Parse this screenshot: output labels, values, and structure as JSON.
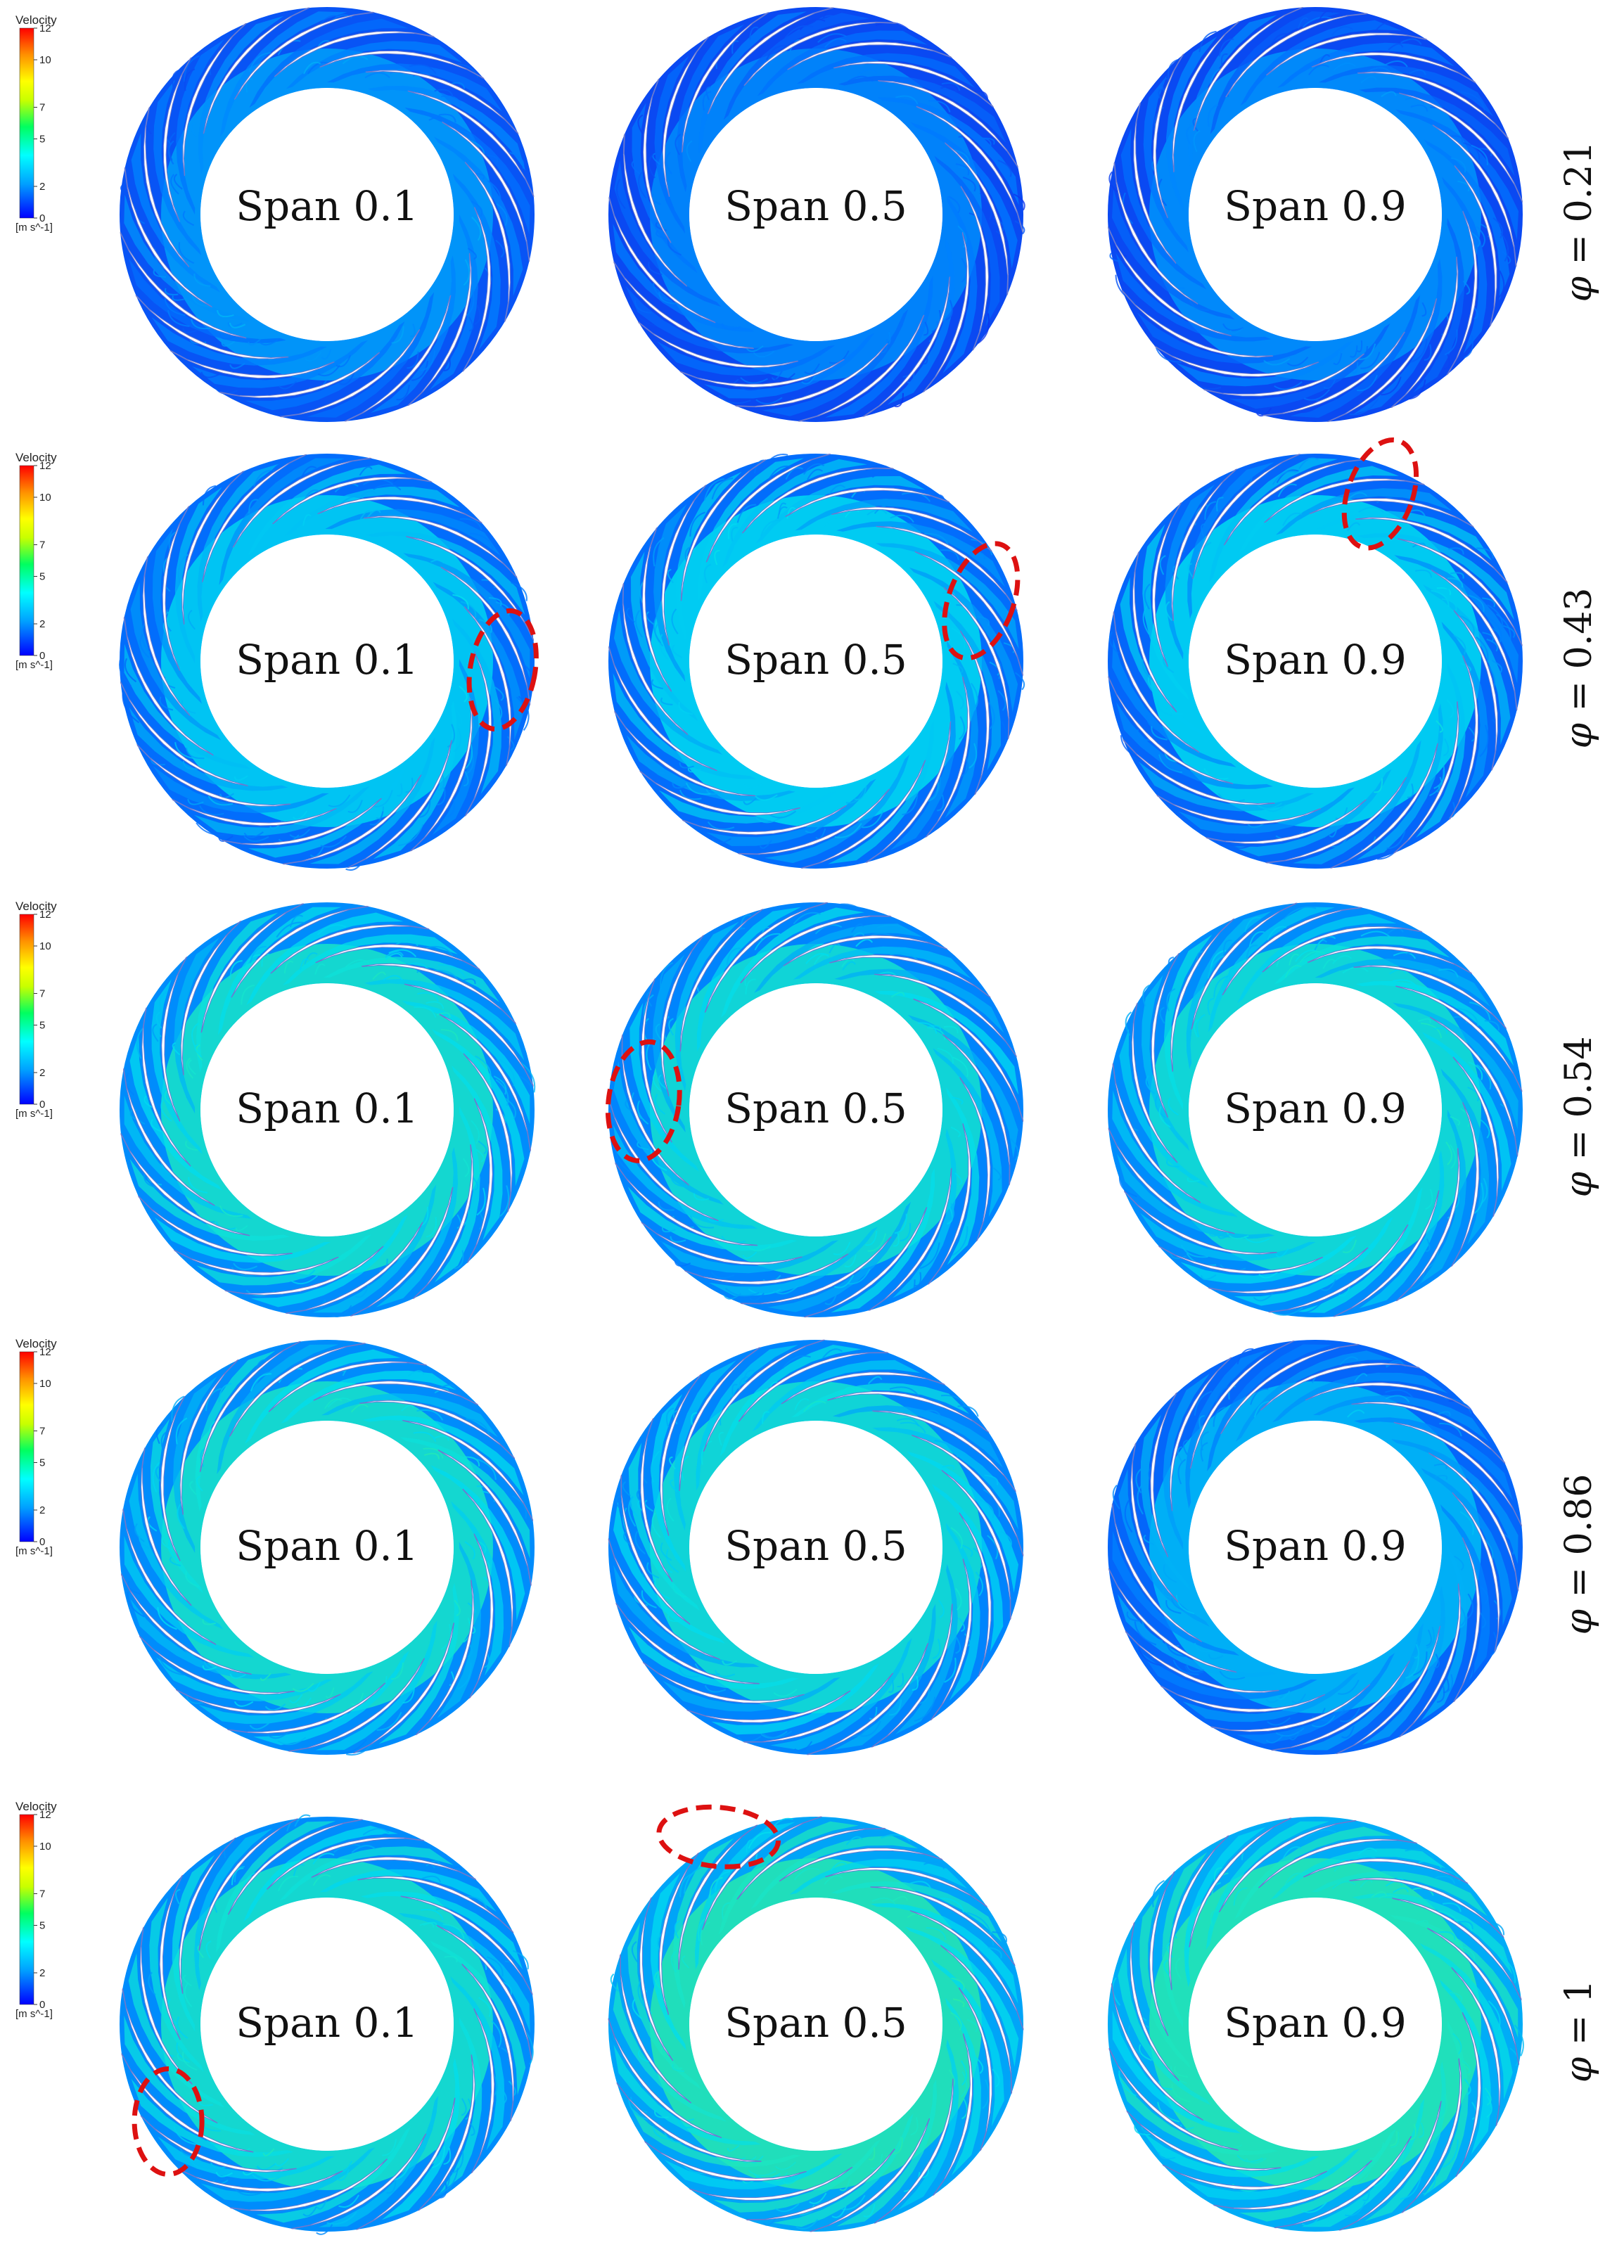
{
  "colorbar": {
    "title": "Velocity",
    "unit": "[m s^-1]",
    "ticks": [
      "12",
      "10",
      "7",
      "5",
      "2",
      "0"
    ],
    "tick_values": [
      12,
      10,
      7,
      5,
      2,
      0
    ],
    "range": [
      0,
      12
    ],
    "colors": [
      "#0000ff",
      "#00a0ff",
      "#00ffff",
      "#00ff60",
      "#c8ff00",
      "#ffff00",
      "#ff9000",
      "#ff0000"
    ]
  },
  "rows": [
    {
      "phi_label": "0.21",
      "phi_value": 0.21,
      "cells": [
        {
          "span": "Span 0.1",
          "ring_flow": 0.35,
          "outer_flow": 0.15,
          "highlight": null
        },
        {
          "span": "Span 0.5",
          "ring_flow": 0.3,
          "outer_flow": 0.12,
          "highlight": null
        },
        {
          "span": "Span 0.9",
          "ring_flow": 0.32,
          "outer_flow": 0.12,
          "highlight": null
        }
      ]
    },
    {
      "phi_label": "0.43",
      "phi_value": 0.43,
      "cells": [
        {
          "span": "Span 0.1",
          "ring_flow": 0.48,
          "outer_flow": 0.22,
          "highlight": "right"
        },
        {
          "span": "Span 0.5",
          "ring_flow": 0.5,
          "outer_flow": 0.22,
          "highlight": "upper-right"
        },
        {
          "span": "Span 0.9",
          "ring_flow": 0.5,
          "outer_flow": 0.2,
          "highlight": "top-right"
        }
      ]
    },
    {
      "phi_label": "0.54",
      "phi_value": 0.54,
      "cells": [
        {
          "span": "Span 0.1",
          "ring_flow": 0.6,
          "outer_flow": 0.3,
          "highlight": null
        },
        {
          "span": "Span 0.5",
          "ring_flow": 0.58,
          "outer_flow": 0.28,
          "highlight": "left"
        },
        {
          "span": "Span 0.9",
          "ring_flow": 0.58,
          "outer_flow": 0.3,
          "highlight": null
        }
      ]
    },
    {
      "phi_label": "0.86",
      "phi_value": 0.86,
      "cells": [
        {
          "span": "Span 0.1",
          "ring_flow": 0.6,
          "outer_flow": 0.3,
          "highlight": null
        },
        {
          "span": "Span 0.5",
          "ring_flow": 0.58,
          "outer_flow": 0.28,
          "highlight": null
        },
        {
          "span": "Span 0.9",
          "ring_flow": 0.42,
          "outer_flow": 0.2,
          "highlight": null
        }
      ]
    },
    {
      "phi_label": "1",
      "phi_value": 1,
      "cells": [
        {
          "span": "Span 0.1",
          "ring_flow": 0.6,
          "outer_flow": 0.3,
          "highlight": "lower-left"
        },
        {
          "span": "Span 0.5",
          "ring_flow": 0.66,
          "outer_flow": 0.36,
          "highlight": "top-left"
        },
        {
          "span": "Span 0.9",
          "ring_flow": 0.66,
          "outer_flow": 0.38,
          "highlight": null
        }
      ]
    }
  ],
  "phi_symbol": "φ",
  "equals": "=",
  "highlight_color": "#dd1111",
  "blade_count": 20
}
